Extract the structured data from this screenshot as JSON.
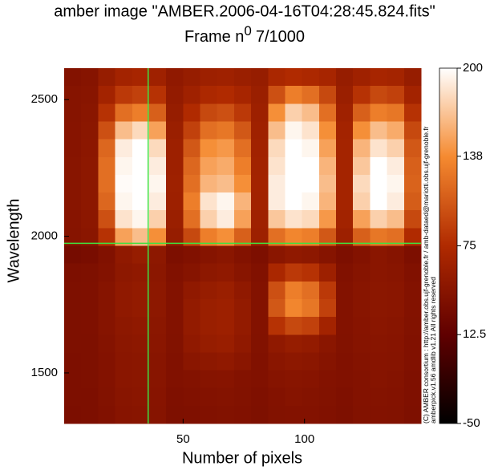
{
  "chart_data": {
    "type": "heatmap",
    "title": "amber image \"AMBER.2006-04-16T04:28:45.824.fits\"",
    "subtitle": {
      "text": "Frame n",
      "superscript": "0",
      "frame": "7/1000"
    },
    "xlabel": "Number of pixels",
    "ylabel": "Wavelength",
    "xlim": [
      1,
      148
    ],
    "ylim": [
      1315,
      2615
    ],
    "xticks": [
      50,
      100
    ],
    "yticks": [
      1500,
      2000,
      2500
    ],
    "zlim": [
      -50,
      200
    ],
    "zticks": [
      -50,
      12.5,
      75,
      138,
      200
    ],
    "colormap": [
      "#000000",
      "#600000",
      "#b02a00",
      "#f58a30",
      "#ffffff"
    ],
    "cursor": {
      "x": 35.6,
      "y": 1974,
      "color": "#40e040"
    },
    "credits": [
      "(C) AMBER consortium : http://amber.obs.ujf-grenoble.fr / amb-dataed@mariotti.obs.ujf-grenoble.fr",
      "amberpick.v1.56 amdlib v1.21 All rights reserved"
    ],
    "values": [
      [
        40,
        42,
        55,
        65,
        68,
        62,
        50,
        55,
        60,
        62,
        58,
        55,
        70,
        75,
        72,
        68,
        55,
        62,
        68,
        66,
        55
      ],
      [
        42,
        44,
        65,
        85,
        90,
        80,
        52,
        62,
        72,
        75,
        68,
        58,
        100,
        130,
        120,
        95,
        58,
        80,
        95,
        90,
        65
      ],
      [
        42,
        45,
        80,
        120,
        130,
        110,
        55,
        75,
        95,
        100,
        85,
        60,
        140,
        175,
        165,
        120,
        62,
        110,
        130,
        125,
        80
      ],
      [
        43,
        46,
        100,
        165,
        180,
        150,
        58,
        90,
        120,
        125,
        105,
        62,
        165,
        195,
        185,
        140,
        65,
        140,
        165,
        155,
        95
      ],
      [
        43,
        47,
        115,
        190,
        200,
        180,
        60,
        105,
        140,
        145,
        120,
        63,
        180,
        200,
        195,
        150,
        66,
        160,
        185,
        175,
        105
      ],
      [
        44,
        48,
        120,
        195,
        200,
        190,
        60,
        115,
        150,
        155,
        130,
        64,
        185,
        200,
        200,
        160,
        66,
        170,
        200,
        190,
        110
      ],
      [
        44,
        48,
        120,
        198,
        200,
        195,
        61,
        120,
        160,
        165,
        140,
        65,
        190,
        200,
        200,
        165,
        66,
        180,
        200,
        195,
        112
      ],
      [
        44,
        48,
        115,
        195,
        200,
        190,
        60,
        130,
        185,
        195,
        160,
        64,
        190,
        200,
        195,
        160,
        66,
        175,
        200,
        190,
        108
      ],
      [
        43,
        47,
        100,
        185,
        195,
        175,
        58,
        120,
        175,
        190,
        150,
        62,
        170,
        185,
        180,
        145,
        64,
        150,
        175,
        165,
        95
      ],
      [
        42,
        45,
        80,
        150,
        165,
        140,
        55,
        95,
        130,
        140,
        110,
        60,
        120,
        135,
        130,
        105,
        60,
        110,
        125,
        120,
        75
      ],
      [
        30,
        32,
        38,
        50,
        55,
        48,
        35,
        38,
        42,
        45,
        40,
        35,
        45,
        50,
        48,
        42,
        35,
        40,
        45,
        42,
        35
      ],
      [
        35,
        36,
        40,
        48,
        50,
        46,
        38,
        42,
        48,
        50,
        44,
        38,
        70,
        85,
        80,
        60,
        38,
        42,
        45,
        44,
        38
      ],
      [
        36,
        37,
        42,
        50,
        52,
        48,
        40,
        50,
        55,
        58,
        50,
        40,
        100,
        130,
        120,
        85,
        40,
        44,
        46,
        45,
        40
      ],
      [
        36,
        37,
        42,
        50,
        52,
        48,
        40,
        52,
        58,
        60,
        52,
        40,
        105,
        135,
        125,
        90,
        40,
        44,
        46,
        45,
        40
      ],
      [
        36,
        37,
        42,
        48,
        50,
        46,
        40,
        52,
        58,
        60,
        52,
        40,
        80,
        95,
        90,
        65,
        40,
        43,
        45,
        44,
        39
      ],
      [
        36,
        36,
        41,
        46,
        48,
        45,
        39,
        50,
        55,
        57,
        50,
        39,
        50,
        55,
        52,
        45,
        39,
        42,
        44,
        43,
        38
      ],
      [
        35,
        36,
        40,
        45,
        46,
        44,
        38,
        45,
        48,
        50,
        45,
        38,
        45,
        48,
        46,
        42,
        38,
        41,
        43,
        42,
        38
      ],
      [
        35,
        36,
        40,
        45,
        46,
        44,
        38,
        40,
        42,
        43,
        40,
        38,
        42,
        44,
        43,
        40,
        38,
        40,
        42,
        41,
        37
      ],
      [
        35,
        35,
        39,
        44,
        45,
        43,
        37,
        38,
        40,
        41,
        39,
        37,
        40,
        42,
        41,
        39,
        37,
        40,
        41,
        40,
        37
      ],
      [
        34,
        35,
        38,
        43,
        44,
        42,
        36,
        37,
        38,
        39,
        38,
        36,
        39,
        40,
        40,
        38,
        36,
        39,
        40,
        39,
        36
      ]
    ]
  }
}
